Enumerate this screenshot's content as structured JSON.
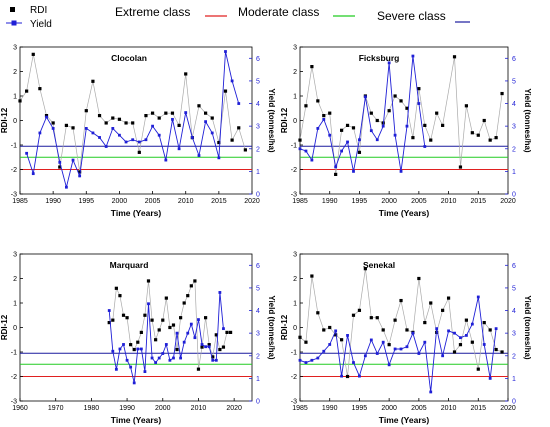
{
  "legend": {
    "rdi_label": "RDI",
    "yield_label": "Yield",
    "extreme_label": "Extreme class",
    "moderate_label": "Moderate class",
    "severe_label": "Severe class",
    "rdi_color": "#000000",
    "yield_color": "#1f1fd6",
    "extreme_color": "#e02020",
    "moderate_color": "#22cc22",
    "severe_color": "#1a1a9e"
  },
  "chart_data": [
    {
      "type": "line",
      "title": "Clocolan",
      "xlabel": "Time (Years)",
      "ylabel": "RDI-12",
      "y2label": "Yield (tonnes/ha)",
      "xlim": [
        1985,
        2020
      ],
      "xticks": [
        1985,
        1990,
        1995,
        2000,
        2005,
        2010,
        2015,
        2020
      ],
      "ylim": [
        -3,
        3
      ],
      "yticks": [
        -3,
        -2,
        -1,
        0,
        1,
        2,
        3
      ],
      "y2lim": [
        0,
        6.5
      ],
      "y2ticks": [
        0,
        1,
        2,
        3,
        4,
        5,
        6
      ],
      "thresholds": {
        "extreme": -2,
        "moderate": -1.5,
        "severe": -1.05
      },
      "series": [
        {
          "name": "RDI",
          "x": [
            1985,
            1986,
            1987,
            1988,
            1989,
            1990,
            1991,
            1992,
            1993,
            1994,
            1995,
            1996,
            1997,
            1998,
            1999,
            2000,
            2001,
            2002,
            2003,
            2004,
            2005,
            2006,
            2007,
            2008,
            2009,
            2010,
            2011,
            2012,
            2013,
            2014,
            2015,
            2016,
            2017,
            2018,
            2019
          ],
          "values": [
            0.8,
            1.2,
            2.7,
            1.3,
            0.2,
            -0.1,
            -1.9,
            -0.2,
            -0.3,
            -2.1,
            0.4,
            1.6,
            0.2,
            -0.1,
            0.1,
            0.05,
            -0.1,
            -0.1,
            -1.3,
            0.2,
            0.3,
            0.1,
            0.3,
            0.3,
            -0.2,
            1.9,
            -0.7,
            0.6,
            0.3,
            0.1,
            -0.9,
            1.2,
            -0.8,
            -0.3,
            -1.2
          ]
        },
        {
          "name": "Yield",
          "x": [
            1986,
            1987,
            1988,
            1989,
            1990,
            1991,
            1992,
            1993,
            1994,
            1995,
            1996,
            1997,
            1998,
            1999,
            2000,
            2001,
            2002,
            2003,
            2004,
            2005,
            2006,
            2007,
            2008,
            2009,
            2010,
            2011,
            2012,
            2013,
            2014,
            2015,
            2016,
            2017,
            2018
          ],
          "values": [
            1.8,
            0.9,
            2.7,
            3.4,
            2.9,
            1.4,
            0.3,
            1.5,
            0.8,
            2.9,
            2.7,
            2.5,
            2.1,
            2.9,
            2.6,
            2.3,
            2.4,
            2.3,
            2.4,
            3.0,
            2.6,
            1.5,
            3.3,
            2.0,
            3.6,
            2.5,
            1.7,
            3.2,
            2.7,
            1.6,
            6.3,
            5.0,
            4.0
          ]
        }
      ]
    },
    {
      "type": "line",
      "title": "Ficksburg",
      "xlabel": "Time (Years)",
      "ylabel": "RDI-12",
      "y2label": "Yield (tonnes/ha)",
      "xlim": [
        1985,
        2020
      ],
      "xticks": [
        1985,
        1990,
        1995,
        2000,
        2005,
        2010,
        2015,
        2020
      ],
      "ylim": [
        -3,
        3
      ],
      "yticks": [
        -3,
        -2,
        -1,
        0,
        1,
        2,
        3
      ],
      "y2lim": [
        0,
        6.5
      ],
      "y2ticks": [
        0,
        1,
        2,
        3,
        4,
        5,
        6
      ],
      "thresholds": {
        "extreme": -2,
        "moderate": -1.5,
        "severe": -1.05
      },
      "series": [
        {
          "name": "RDI",
          "x": [
            1985,
            1986,
            1987,
            1988,
            1989,
            1990,
            1991,
            1992,
            1993,
            1994,
            1995,
            1996,
            1997,
            1998,
            1999,
            2000,
            2001,
            2002,
            2003,
            2004,
            2005,
            2006,
            2007,
            2008,
            2009,
            2011,
            2012,
            2013,
            2014,
            2015,
            2016,
            2017,
            2018,
            2019
          ],
          "values": [
            -0.8,
            0.6,
            2.2,
            0.8,
            0.2,
            0.3,
            -2.2,
            -0.4,
            -0.2,
            -0.3,
            -1.3,
            1.0,
            0.3,
            0.0,
            -0.1,
            0.4,
            1.0,
            0.8,
            0.5,
            -0.7,
            1.3,
            -0.2,
            -0.8,
            0.3,
            -0.2,
            2.6,
            -1.9,
            0.6,
            -0.5,
            -0.6,
            0.0,
            -0.8,
            -0.7,
            1.1
          ]
        },
        {
          "name": "Yield",
          "x": [
            1985,
            1986,
            1987,
            1988,
            1989,
            1990,
            1991,
            1992,
            1993,
            1994,
            1995,
            1996,
            1997,
            1998,
            1999,
            2000,
            2001,
            2002,
            2003,
            2004,
            2005,
            2006
          ],
          "values": [
            2.0,
            1.9,
            1.5,
            2.9,
            3.3,
            2.6,
            1.2,
            1.9,
            2.3,
            1.0,
            2.4,
            4.3,
            2.8,
            2.4,
            3.0,
            5.8,
            2.6,
            1.0,
            3.0,
            6.1,
            4.0,
            2.1
          ]
        }
      ]
    },
    {
      "type": "line",
      "title": "Marquard",
      "xlabel": "Time (Years)",
      "ylabel": "RDI-12",
      "y2label": "Yield (tonnes/ha)",
      "xlim": [
        1960,
        2025
      ],
      "xticks": [
        1960,
        1970,
        1980,
        1990,
        2000,
        2010,
        2020
      ],
      "ylim": [
        -3,
        3
      ],
      "yticks": [
        -3,
        -2,
        -1,
        0,
        1,
        2,
        3
      ],
      "y2lim": [
        0,
        6.5
      ],
      "y2ticks": [
        0,
        1,
        2,
        3,
        4,
        5,
        6
      ],
      "thresholds": {
        "extreme": -2,
        "moderate": -1.5,
        "severe": -1.05
      },
      "series": [
        {
          "name": "RDI",
          "x": [
            1985,
            1986,
            1987,
            1988,
            1989,
            1990,
            1991,
            1992,
            1993,
            1994,
            1995,
            1996,
            1997,
            1998,
            1999,
            2000,
            2001,
            2002,
            2003,
            2004,
            2005,
            2006,
            2007,
            2008,
            2009,
            2010,
            2011,
            2012,
            2013,
            2014,
            2015,
            2016,
            2017,
            2018,
            2019
          ],
          "values": [
            0.2,
            0.3,
            1.6,
            1.3,
            0.5,
            0.4,
            -0.7,
            -0.9,
            -0.6,
            -0.2,
            0.5,
            1.9,
            0.3,
            -0.5,
            -0.1,
            0.3,
            1.2,
            0.0,
            0.1,
            -0.9,
            0.4,
            1.0,
            1.3,
            1.7,
            1.9,
            -1.7,
            -0.8,
            0.4,
            -0.7,
            -1.2,
            -0.3,
            -0.9,
            -0.8,
            -0.2,
            -0.2
          ]
        },
        {
          "name": "Yield",
          "x": [
            1985,
            1986,
            1987,
            1988,
            1989,
            1990,
            1991,
            1992,
            1993,
            1994,
            1995,
            1996,
            1997,
            1998,
            1999,
            2000,
            2001,
            2002,
            2003,
            2004,
            2005,
            2006,
            2007,
            2008,
            2009,
            2010,
            2011,
            2012,
            2013,
            2014,
            2015,
            2016,
            2017
          ],
          "values": [
            4.0,
            2.2,
            1.4,
            2.3,
            2.5,
            1.8,
            1.5,
            0.8,
            2.3,
            2.3,
            1.3,
            4.3,
            1.9,
            1.7,
            1.9,
            2.1,
            2.5,
            1.8,
            1.9,
            3.0,
            1.9,
            2.6,
            3.0,
            3.4,
            2.8,
            3.6,
            2.5,
            2.4,
            2.4,
            1.8,
            1.8,
            4.8,
            3.2
          ]
        }
      ]
    },
    {
      "type": "line",
      "title": "Senekal",
      "xlabel": "Time (Years)",
      "ylabel": "RDI-12",
      "y2label": "Yield (tonnes/ha)",
      "xlim": [
        1985,
        2020
      ],
      "xticks": [
        1985,
        1990,
        1995,
        2000,
        2005,
        2010,
        2015,
        2020
      ],
      "ylim": [
        -3,
        3
      ],
      "yticks": [
        -3,
        -2,
        -1,
        0,
        1,
        2,
        3
      ],
      "y2lim": [
        0,
        6.5
      ],
      "y2ticks": [
        0,
        1,
        2,
        3,
        4,
        5,
        6
      ],
      "thresholds": {
        "extreme": -2,
        "moderate": -1.5,
        "severe": -1.05
      },
      "series": [
        {
          "name": "RDI",
          "x": [
            1985,
            1986,
            1987,
            1988,
            1989,
            1990,
            1991,
            1992,
            1993,
            1994,
            1995,
            1996,
            1997,
            1998,
            1999,
            2000,
            2001,
            2002,
            2003,
            2004,
            2005,
            2006,
            2007,
            2008,
            2009,
            2010,
            2011,
            2012,
            2013,
            2014,
            2015,
            2016,
            2017,
            2018,
            2019
          ],
          "values": [
            -0.4,
            -0.6,
            2.1,
            0.6,
            -0.1,
            0.0,
            -0.3,
            -0.5,
            -2.0,
            0.5,
            0.7,
            2.4,
            0.4,
            0.4,
            -0.1,
            -0.7,
            0.3,
            1.1,
            -0.1,
            -0.2,
            2.0,
            0.2,
            1.0,
            -0.2,
            0.7,
            1.2,
            -1.0,
            -0.7,
            0.3,
            -0.6,
            -1.7,
            0.2,
            -0.1,
            -0.9,
            -1.0
          ]
        },
        {
          "name": "Yield",
          "x": [
            1985,
            1986,
            1987,
            1988,
            1989,
            1990,
            1991,
            1992,
            1993,
            1994,
            1995,
            1996,
            1997,
            1998,
            1999,
            2000,
            2001,
            2002,
            2003,
            2004,
            2005,
            2006,
            2007,
            2008,
            2009,
            2010,
            2011,
            2012,
            2013,
            2014,
            2015,
            2016,
            2017,
            2018
          ],
          "values": [
            1.8,
            1.7,
            1.8,
            1.9,
            2.2,
            2.5,
            3.1,
            1.1,
            2.9,
            1.7,
            1.1,
            2.0,
            2.7,
            2.1,
            2.6,
            1.6,
            2.3,
            2.3,
            2.4,
            3.0,
            2.1,
            2.6,
            0.4,
            3.2,
            2.0,
            3.1,
            3.0,
            2.8,
            2.9,
            3.4,
            4.6,
            2.5,
            1.0,
            3.2
          ]
        }
      ]
    }
  ]
}
